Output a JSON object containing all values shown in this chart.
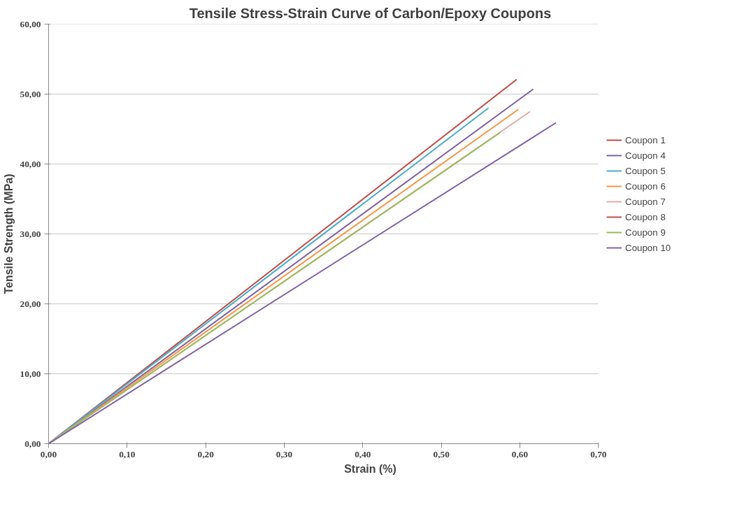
{
  "chart_data": {
    "type": "line",
    "title": "Tensile Stress-Strain Curve of Carbon/Epoxy Coupons",
    "xlabel": "Strain (%)",
    "ylabel": "Tensile Strength (MPa)",
    "xlim": [
      0,
      0.7
    ],
    "ylim": [
      0,
      60
    ],
    "xticks": [
      {
        "value": 0,
        "label": "0,00"
      },
      {
        "value": 0.1,
        "label": "0,10"
      },
      {
        "value": 0.2,
        "label": "0,20"
      },
      {
        "value": 0.3,
        "label": "0,30"
      },
      {
        "value": 0.4,
        "label": "0,40"
      },
      {
        "value": 0.5,
        "label": "0,50"
      },
      {
        "value": 0.6,
        "label": "0,60"
      },
      {
        "value": 0.7,
        "label": "0,70"
      }
    ],
    "yticks": [
      {
        "value": 0,
        "label": "0,00"
      },
      {
        "value": 10,
        "label": "10,00"
      },
      {
        "value": 20,
        "label": "20,00"
      },
      {
        "value": 30,
        "label": "30,00"
      },
      {
        "value": 40,
        "label": "40,00"
      },
      {
        "value": 50,
        "label": "50,00"
      },
      {
        "value": 60,
        "label": "60,00"
      }
    ],
    "grid": "y",
    "legend": "right",
    "marker": "none",
    "line_style": "solid",
    "series": [
      {
        "name": "Coupon 1",
        "color": "#be4b48",
        "x": [
          0,
          0.596
        ],
        "values": [
          0,
          52.1
        ]
      },
      {
        "name": "Coupon 4",
        "color": "#7d60a0",
        "x": [
          0,
          0.617
        ],
        "values": [
          0,
          50.7
        ]
      },
      {
        "name": "Coupon 5",
        "color": "#4bacc6",
        "x": [
          0,
          0.56
        ],
        "values": [
          0,
          48.0
        ]
      },
      {
        "name": "Coupon 6",
        "color": "#f79646",
        "x": [
          0,
          0.598
        ],
        "values": [
          0,
          47.8
        ]
      },
      {
        "name": "Coupon 7",
        "color": "#e0aaa8",
        "x": [
          0,
          0.613
        ],
        "values": [
          0,
          47.5
        ]
      },
      {
        "name": "Coupon 8",
        "color": "#c0504d"
      },
      {
        "name": "Coupon 9",
        "color": "#9bbb59",
        "x": [
          0,
          0.575
        ],
        "values": [
          0,
          44.5
        ]
      },
      {
        "name": "Coupon 10",
        "color": "#8064a2",
        "x": [
          0,
          0.646
        ],
        "values": [
          0,
          45.9
        ]
      }
    ]
  }
}
